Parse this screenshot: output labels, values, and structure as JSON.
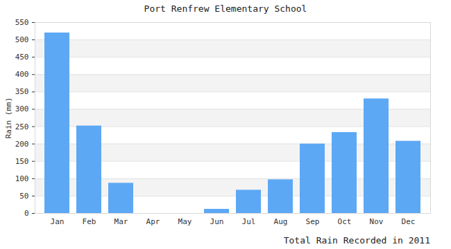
{
  "chart_data": {
    "type": "bar",
    "title": "Port Renfrew Elementary School",
    "caption": "Total Rain Recorded in 2011",
    "y_label": "Rain (mm)",
    "categories": [
      "Jan",
      "Feb",
      "Mar",
      "Apr",
      "May",
      "Jun",
      "Jul",
      "Aug",
      "Sep",
      "Oct",
      "Nov",
      "Dec"
    ],
    "values": [
      520,
      252,
      87,
      0,
      0,
      12,
      67,
      97,
      200,
      233,
      330,
      208
    ],
    "color": "#5ca8f5",
    "ylim": [
      0,
      550
    ],
    "yticks": [
      0,
      50,
      100,
      150,
      200,
      250,
      300,
      350,
      400,
      450,
      500,
      550
    ],
    "grid": true
  }
}
